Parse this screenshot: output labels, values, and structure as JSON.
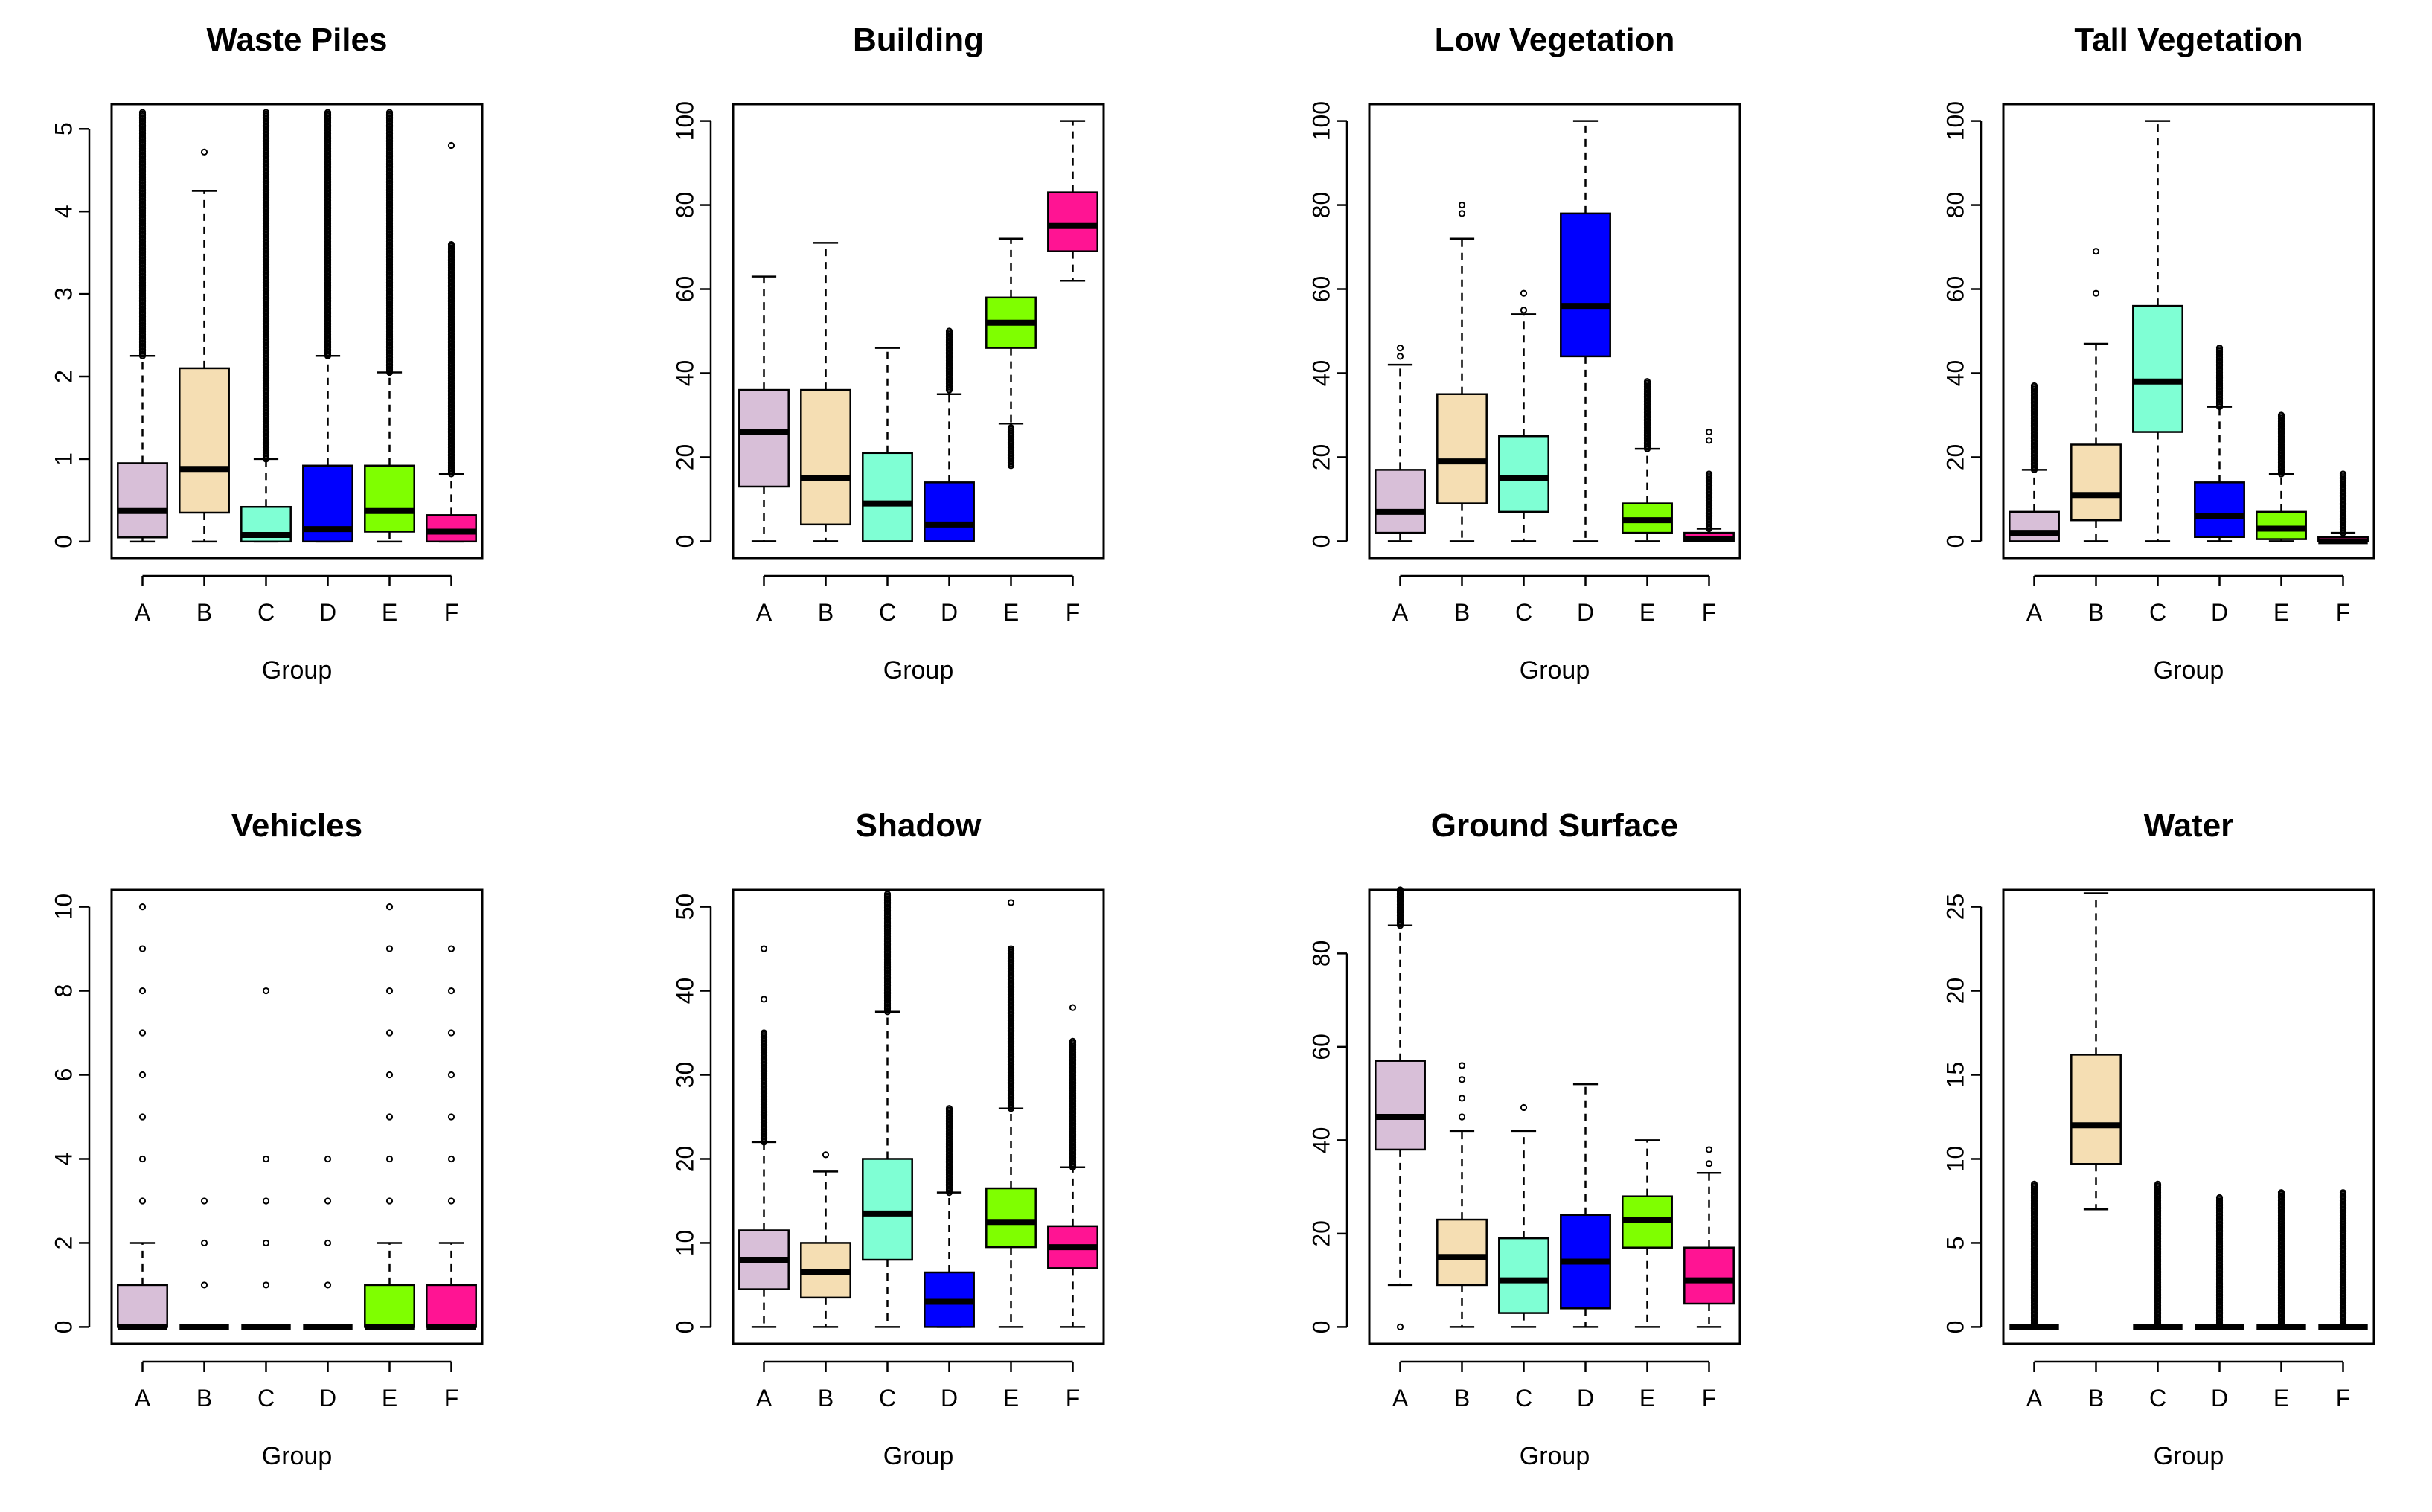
{
  "chart_data": [
    {
      "type": "box",
      "title": "Waste Piles",
      "xlabel": "Group",
      "ylabel": "",
      "ylim": [
        -0.2,
        5.3
      ],
      "yticks": [
        0,
        1,
        2,
        3,
        4,
        5
      ],
      "categories": [
        "A",
        "B",
        "C",
        "D",
        "E",
        "F"
      ],
      "colors": [
        "#D8BFD8",
        "#F5DEB3",
        "#7FFFD4",
        "#0000FF",
        "#7FFF00",
        "#FF1493"
      ],
      "boxes": [
        {
          "label": "A",
          "lw": 0,
          "q1": 0.05,
          "median": 0.37,
          "q3": 0.95,
          "uw": 2.25,
          "outlier_range": [
            2.25,
            5.2
          ]
        },
        {
          "label": "B",
          "lw": 0,
          "q1": 0.35,
          "median": 0.88,
          "q3": 2.1,
          "uw": 4.25,
          "outliers": [
            4.72
          ]
        },
        {
          "label": "C",
          "lw": 0,
          "q1": 0.0,
          "median": 0.08,
          "q3": 0.42,
          "uw": 1.0,
          "outlier_range": [
            1.0,
            5.2
          ]
        },
        {
          "label": "D",
          "lw": 0,
          "q1": 0.0,
          "median": 0.15,
          "q3": 0.92,
          "uw": 2.25,
          "outlier_range": [
            2.25,
            5.2
          ]
        },
        {
          "label": "E",
          "lw": 0,
          "q1": 0.12,
          "median": 0.37,
          "q3": 0.92,
          "uw": 2.05,
          "outlier_range": [
            2.05,
            5.2
          ]
        },
        {
          "label": "F",
          "lw": 0,
          "q1": 0.0,
          "median": 0.12,
          "q3": 0.32,
          "uw": 0.82,
          "outlier_range": [
            0.82,
            3.6
          ],
          "outliers": [
            4.8
          ]
        }
      ]
    },
    {
      "type": "box",
      "title": "Building",
      "xlabel": "Group",
      "ylabel": "",
      "ylim": [
        -4,
        104
      ],
      "yticks": [
        0,
        20,
        40,
        60,
        80,
        100
      ],
      "categories": [
        "A",
        "B",
        "C",
        "D",
        "E",
        "F"
      ],
      "colors": [
        "#D8BFD8",
        "#F5DEB3",
        "#7FFFD4",
        "#0000FF",
        "#7FFF00",
        "#FF1493"
      ],
      "boxes": [
        {
          "label": "A",
          "lw": 0,
          "q1": 13,
          "median": 26,
          "q3": 36,
          "uw": 63
        },
        {
          "label": "B",
          "lw": 0,
          "q1": 4,
          "median": 15,
          "q3": 36,
          "uw": 71
        },
        {
          "label": "C",
          "lw": 0,
          "q1": 0,
          "median": 9,
          "q3": 21,
          "uw": 46
        },
        {
          "label": "D",
          "lw": 0,
          "q1": 0,
          "median": 4,
          "q3": 14,
          "uw": 35,
          "outlier_range": [
            36,
            50
          ]
        },
        {
          "label": "E",
          "lw": 28,
          "q1": 46,
          "median": 52,
          "q3": 58,
          "uw": 72,
          "outlier_range": [
            18,
            27
          ]
        },
        {
          "label": "F",
          "lw": 62,
          "q1": 69,
          "median": 75,
          "q3": 83,
          "uw": 100
        }
      ]
    },
    {
      "type": "box",
      "title": "Low Vegetation",
      "xlabel": "Group",
      "ylabel": "",
      "ylim": [
        -4,
        104
      ],
      "yticks": [
        0,
        20,
        40,
        60,
        80,
        100
      ],
      "categories": [
        "A",
        "B",
        "C",
        "D",
        "E",
        "F"
      ],
      "colors": [
        "#D8BFD8",
        "#F5DEB3",
        "#7FFFD4",
        "#0000FF",
        "#7FFF00",
        "#FF1493"
      ],
      "boxes": [
        {
          "label": "A",
          "lw": 0,
          "q1": 2,
          "median": 7,
          "q3": 17,
          "uw": 42,
          "outliers": [
            44,
            46
          ]
        },
        {
          "label": "B",
          "lw": 0,
          "q1": 9,
          "median": 19,
          "q3": 35,
          "uw": 72,
          "outliers": [
            78,
            80
          ]
        },
        {
          "label": "C",
          "lw": 0,
          "q1": 7,
          "median": 15,
          "q3": 25,
          "uw": 54,
          "outliers": [
            55,
            59
          ]
        },
        {
          "label": "D",
          "lw": 0,
          "q1": 44,
          "median": 56,
          "q3": 78,
          "uw": 100
        },
        {
          "label": "E",
          "lw": 0,
          "q1": 2,
          "median": 5,
          "q3": 9,
          "uw": 22,
          "outlier_range": [
            22,
            38
          ]
        },
        {
          "label": "F",
          "lw": 0,
          "q1": 0,
          "median": 0.5,
          "q3": 2,
          "uw": 3,
          "outlier_range": [
            3,
            16
          ],
          "outliers": [
            24,
            26
          ]
        }
      ]
    },
    {
      "type": "box",
      "title": "Tall Vegetation",
      "xlabel": "Group",
      "ylabel": "",
      "ylim": [
        -4,
        104
      ],
      "yticks": [
        0,
        20,
        40,
        60,
        80,
        100
      ],
      "categories": [
        "A",
        "B",
        "C",
        "D",
        "E",
        "F"
      ],
      "colors": [
        "#D8BFD8",
        "#F5DEB3",
        "#7FFFD4",
        "#0000FF",
        "#7FFF00",
        "#FF1493"
      ],
      "boxes": [
        {
          "label": "A",
          "lw": 0,
          "q1": 0,
          "median": 2,
          "q3": 7,
          "uw": 17,
          "outlier_range": [
            17,
            37
          ]
        },
        {
          "label": "B",
          "lw": 0,
          "q1": 5,
          "median": 11,
          "q3": 23,
          "uw": 47,
          "outliers": [
            59,
            69
          ]
        },
        {
          "label": "C",
          "lw": 0,
          "q1": 26,
          "median": 38,
          "q3": 56,
          "uw": 100
        },
        {
          "label": "D",
          "lw": 0,
          "q1": 1,
          "median": 6,
          "q3": 14,
          "uw": 32,
          "outlier_range": [
            32,
            46
          ]
        },
        {
          "label": "E",
          "lw": 0,
          "q1": 0.5,
          "median": 3,
          "q3": 7,
          "uw": 16,
          "outlier_range": [
            16,
            30
          ]
        },
        {
          "label": "F",
          "lw": 0,
          "q1": 0,
          "median": 0,
          "q3": 1,
          "uw": 2,
          "outlier_range": [
            2,
            16
          ]
        }
      ]
    },
    {
      "type": "box",
      "title": "Vehicles",
      "xlabel": "Group",
      "ylabel": "",
      "ylim": [
        -0.4,
        10.4
      ],
      "yticks": [
        0,
        2,
        4,
        6,
        8,
        10
      ],
      "categories": [
        "A",
        "B",
        "C",
        "D",
        "E",
        "F"
      ],
      "colors": [
        "#D8BFD8",
        "#F5DEB3",
        "#7FFFD4",
        "#0000FF",
        "#7FFF00",
        "#FF1493"
      ],
      "boxes": [
        {
          "label": "A",
          "lw": 0,
          "q1": 0,
          "median": 0,
          "q3": 1,
          "uw": 2,
          "outliers": [
            3,
            4,
            5,
            6,
            7,
            8,
            9,
            10
          ]
        },
        {
          "label": "B",
          "lw": 0,
          "q1": 0,
          "median": 0,
          "q3": 0,
          "uw": 0,
          "outliers": [
            1,
            2,
            3
          ]
        },
        {
          "label": "C",
          "lw": 0,
          "q1": 0,
          "median": 0,
          "q3": 0,
          "uw": 0,
          "outliers": [
            1,
            2,
            3,
            4,
            8
          ]
        },
        {
          "label": "D",
          "lw": 0,
          "q1": 0,
          "median": 0,
          "q3": 0,
          "uw": 0,
          "outliers": [
            1,
            2,
            3,
            4
          ]
        },
        {
          "label": "E",
          "lw": 0,
          "q1": 0,
          "median": 0,
          "q3": 1,
          "uw": 2,
          "outliers": [
            3,
            4,
            5,
            6,
            7,
            8,
            9,
            10
          ]
        },
        {
          "label": "F",
          "lw": 0,
          "q1": 0,
          "median": 0,
          "q3": 1,
          "uw": 2,
          "outliers": [
            3,
            4,
            5,
            6,
            7,
            8,
            9
          ]
        }
      ]
    },
    {
      "type": "box",
      "title": "Shadow",
      "xlabel": "Group",
      "ylabel": "",
      "ylim": [
        -2,
        52
      ],
      "yticks": [
        0,
        10,
        20,
        30,
        40,
        50
      ],
      "categories": [
        "A",
        "B",
        "C",
        "D",
        "E",
        "F"
      ],
      "colors": [
        "#D8BFD8",
        "#F5DEB3",
        "#7FFFD4",
        "#0000FF",
        "#7FFF00",
        "#FF1493"
      ],
      "boxes": [
        {
          "label": "A",
          "lw": 0,
          "q1": 4.5,
          "median": 8,
          "q3": 11.5,
          "uw": 22,
          "outlier_range": [
            22,
            35
          ],
          "outliers": [
            39,
            45
          ]
        },
        {
          "label": "B",
          "lw": 0,
          "q1": 3.5,
          "median": 6.5,
          "q3": 10,
          "uw": 18.5,
          "outliers": [
            20.5
          ]
        },
        {
          "label": "C",
          "lw": 0,
          "q1": 8,
          "median": 13.5,
          "q3": 20,
          "uw": 37.5,
          "outlier_range": [
            37.5,
            51.5
          ]
        },
        {
          "label": "D",
          "lw": 0,
          "q1": 0,
          "median": 3,
          "q3": 6.5,
          "uw": 16,
          "outlier_range": [
            16,
            26
          ]
        },
        {
          "label": "E",
          "lw": 0,
          "q1": 9.5,
          "median": 12.5,
          "q3": 16.5,
          "uw": 26,
          "outlier_range": [
            26,
            45
          ],
          "outliers": [
            50.5
          ]
        },
        {
          "label": "F",
          "lw": 0,
          "q1": 7,
          "median": 9.5,
          "q3": 12,
          "uw": 19,
          "outlier_range": [
            19,
            34
          ],
          "outliers": [
            38
          ]
        }
      ]
    },
    {
      "type": "box",
      "title": "Ground Surface",
      "xlabel": "Group",
      "ylabel": "",
      "ylim": [
        -3.6,
        93.6
      ],
      "yticks": [
        0,
        20,
        40,
        60,
        80
      ],
      "categories": [
        "A",
        "B",
        "C",
        "D",
        "E",
        "F"
      ],
      "colors": [
        "#D8BFD8",
        "#F5DEB3",
        "#7FFFD4",
        "#0000FF",
        "#7FFF00",
        "#FF1493"
      ],
      "boxes": [
        {
          "label": "A",
          "lw": 9,
          "q1": 38,
          "median": 45,
          "q3": 57,
          "uw": 86,
          "outlier_range": [
            86,
            93.6
          ],
          "outliers": [
            0
          ]
        },
        {
          "label": "B",
          "lw": 0,
          "q1": 9,
          "median": 15,
          "q3": 23,
          "uw": 42,
          "outliers": [
            45,
            49,
            53,
            56
          ]
        },
        {
          "label": "C",
          "lw": 0,
          "q1": 3,
          "median": 10,
          "q3": 19,
          "uw": 42,
          "outliers": [
            47
          ]
        },
        {
          "label": "D",
          "lw": 0,
          "q1": 4,
          "median": 14,
          "q3": 24,
          "uw": 52
        },
        {
          "label": "E",
          "lw": 0,
          "q1": 17,
          "median": 23,
          "q3": 28,
          "uw": 40
        },
        {
          "label": "F",
          "lw": 0,
          "q1": 5,
          "median": 10,
          "q3": 17,
          "uw": 33,
          "outliers": [
            35,
            38
          ]
        }
      ]
    },
    {
      "type": "box",
      "title": "Water",
      "xlabel": "Group",
      "ylabel": "",
      "ylim": [
        -1,
        26
      ],
      "yticks": [
        0,
        5,
        10,
        15,
        20,
        25
      ],
      "categories": [
        "A",
        "B",
        "C",
        "D",
        "E",
        "F"
      ],
      "colors": [
        "#D8BFD8",
        "#F5DEB3",
        "#7FFFD4",
        "#0000FF",
        "#7FFF00",
        "#FF1493"
      ],
      "boxes": [
        {
          "label": "A",
          "lw": 0,
          "q1": 0,
          "median": 0,
          "q3": 0,
          "uw": 0,
          "outlier_range": [
            0,
            8.5
          ]
        },
        {
          "label": "B",
          "lw": 7,
          "q1": 9.7,
          "median": 12,
          "q3": 16.2,
          "uw": 25.8
        },
        {
          "label": "C",
          "lw": 0,
          "q1": 0,
          "median": 0,
          "q3": 0,
          "uw": 0,
          "outlier_range": [
            0,
            8.5
          ]
        },
        {
          "label": "D",
          "lw": 0,
          "q1": 0,
          "median": 0,
          "q3": 0,
          "uw": 0,
          "outlier_range": [
            0,
            7.7
          ]
        },
        {
          "label": "E",
          "lw": 0,
          "q1": 0,
          "median": 0,
          "q3": 0,
          "uw": 0,
          "outlier_range": [
            0,
            8
          ]
        },
        {
          "label": "F",
          "lw": 0,
          "q1": 0,
          "median": 0,
          "q3": 0,
          "uw": 0,
          "outlier_range": [
            0,
            8
          ]
        }
      ]
    }
  ]
}
